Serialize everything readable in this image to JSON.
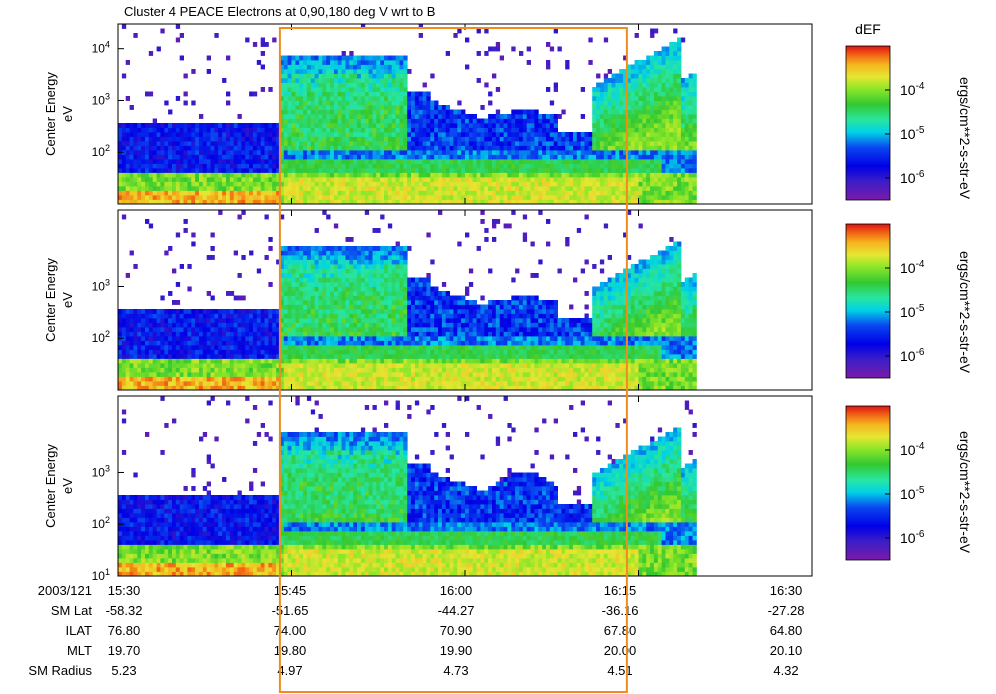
{
  "title": "Cluster 4 PEACE Electrons at 0,90,180 deg V wrt to B",
  "colorbar": {
    "title": "dEF",
    "unit_label": "ergs/cm**2-s-str-eV",
    "tick_labels": [
      "10^-4",
      "10^-5",
      "10^-6"
    ],
    "tick_exponents": [
      -4,
      -5,
      -6
    ],
    "log_range": [
      -6.5,
      -3
    ]
  },
  "panels": [
    {
      "ylabel_line1": "Center Energy",
      "ylabel_line2": "eV",
      "ytick_labels": [
        "10^4",
        "10^3",
        "10^2"
      ],
      "ytick_exponents": [
        4,
        3,
        2
      ]
    },
    {
      "ylabel_line1": "Center Energy",
      "ylabel_line2": "eV",
      "ytick_labels": [
        "10^3",
        "10^2"
      ],
      "ytick_exponents": [
        3,
        2
      ]
    },
    {
      "ylabel_line1": "Center Energy",
      "ylabel_line2": "eV",
      "ytick_labels": [
        "10^3",
        "10^2",
        "10^1"
      ],
      "ytick_exponents": [
        3,
        2,
        1
      ]
    }
  ],
  "ephemeris": {
    "row_labels": [
      "2003/121",
      "SM Lat",
      "ILAT",
      "MLT",
      "SM Radius"
    ],
    "columns": [
      {
        "time": "15:30",
        "values": [
          "-58.32",
          "76.80",
          "19.70",
          "5.23"
        ]
      },
      {
        "time": "15:45",
        "values": [
          "-51.65",
          "74.00",
          "19.80",
          "4.97"
        ]
      },
      {
        "time": "16:00",
        "values": [
          "-44.27",
          "70.90",
          "19.90",
          "4.73"
        ]
      },
      {
        "time": "16:15",
        "values": [
          "-36.16",
          "67.80",
          "20.00",
          "4.51"
        ]
      },
      {
        "time": "16:30",
        "values": [
          "-27.28",
          "64.80",
          "20.10",
          "4.32"
        ]
      }
    ]
  },
  "chart_data": {
    "type": "heatmap",
    "title": "Cluster 4 PEACE Electrons at 0,90,180 deg V wrt to B",
    "x_range_minutes": [
      0,
      60
    ],
    "x_tick_times": [
      "15:30",
      "15:45",
      "16:00",
      "16:15",
      "16:30"
    ],
    "data_end_time": "16:20",
    "y_scale": "log",
    "y_range_eV": [
      10,
      30000
    ],
    "z_label": "dEF ergs/cm**2-s-str-eV",
    "z_range": [
      3e-07,
      0.001
    ],
    "highlight_box_times": [
      "15:44",
      "16:14"
    ],
    "highlight_color": "#f08c1e"
  }
}
